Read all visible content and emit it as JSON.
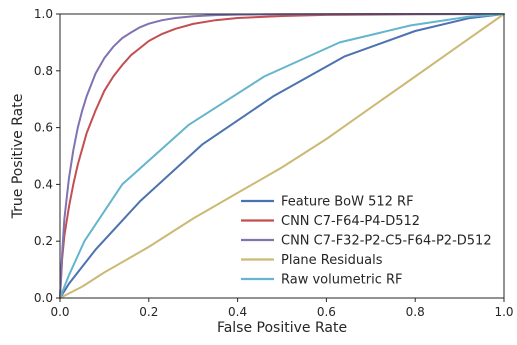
{
  "chart_data": {
    "type": "line",
    "title": "",
    "xlabel": "False Positive Rate",
    "ylabel": "True Positive Rate",
    "xlim": [
      0.0,
      1.0
    ],
    "ylim": [
      0.0,
      1.0
    ],
    "xticks": [
      "0.0",
      "0.2",
      "0.4",
      "0.6",
      "0.8",
      "1.0"
    ],
    "yticks": [
      "0.0",
      "0.2",
      "0.4",
      "0.6",
      "0.8",
      "1.0"
    ],
    "grid": false,
    "legend_position": "lower-right",
    "series": [
      {
        "name": "Feature BoW 512 RF",
        "color": "#4c72b0",
        "x": [
          0.0,
          0.02,
          0.08,
          0.18,
          0.32,
          0.48,
          0.64,
          0.8,
          0.92,
          1.0
        ],
        "y": [
          0.0,
          0.05,
          0.17,
          0.34,
          0.54,
          0.71,
          0.85,
          0.94,
          0.985,
          1.0
        ]
      },
      {
        "name": "CNN C7-F64-P4-D512",
        "color": "#c44e52",
        "x": [
          0.0,
          0.005,
          0.01,
          0.02,
          0.03,
          0.04,
          0.06,
          0.08,
          0.1,
          0.12,
          0.14,
          0.16,
          0.18,
          0.2,
          0.23,
          0.26,
          0.3,
          0.35,
          0.4,
          0.5,
          0.6,
          0.8,
          1.0
        ],
        "y": [
          0.0,
          0.14,
          0.22,
          0.32,
          0.4,
          0.47,
          0.58,
          0.66,
          0.73,
          0.78,
          0.82,
          0.855,
          0.88,
          0.905,
          0.93,
          0.948,
          0.965,
          0.978,
          0.986,
          0.993,
          0.997,
          0.999,
          1.0
        ]
      },
      {
        "name": "CNN C7-F32-P2-C5-F64-P2-D512",
        "color": "#8172b2",
        "x": [
          0.0,
          0.005,
          0.01,
          0.02,
          0.03,
          0.04,
          0.05,
          0.06,
          0.08,
          0.1,
          0.12,
          0.14,
          0.16,
          0.18,
          0.2,
          0.23,
          0.26,
          0.3,
          0.35,
          0.4,
          0.5,
          0.7,
          1.0
        ],
        "y": [
          0.0,
          0.16,
          0.28,
          0.42,
          0.52,
          0.6,
          0.66,
          0.71,
          0.79,
          0.845,
          0.885,
          0.915,
          0.935,
          0.953,
          0.966,
          0.978,
          0.986,
          0.992,
          0.996,
          0.998,
          0.999,
          1.0,
          1.0
        ]
      },
      {
        "name": "Plane Residuals",
        "color": "#ccb974",
        "x": [
          0.0,
          0.05,
          0.1,
          0.2,
          0.3,
          0.4,
          0.5,
          0.6,
          0.7,
          0.8,
          0.9,
          1.0
        ],
        "y": [
          0.0,
          0.04,
          0.09,
          0.18,
          0.28,
          0.37,
          0.46,
          0.56,
          0.67,
          0.78,
          0.89,
          1.0
        ]
      },
      {
        "name": "Raw volumetric RF",
        "color": "#64b5cd",
        "x": [
          0.0,
          0.02,
          0.055,
          0.14,
          0.29,
          0.46,
          0.63,
          0.79,
          0.92,
          1.0
        ],
        "y": [
          0.0,
          0.08,
          0.2,
          0.4,
          0.61,
          0.78,
          0.9,
          0.96,
          0.99,
          1.0
        ]
      }
    ]
  }
}
